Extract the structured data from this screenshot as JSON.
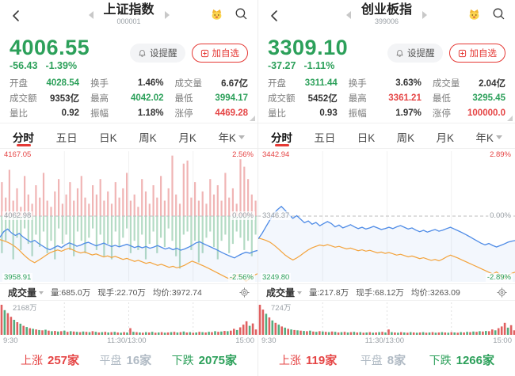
{
  "colors": {
    "up_red": "#e54545",
    "down_green": "#2ca05a",
    "flat_gray": "#b0bac4",
    "price_line_blue": "#4e8be6",
    "avg_line_orange": "#f3a33c",
    "accent_red": "#e53935",
    "bar_red": "rgba(222,92,92,0.45)",
    "bar_green": "rgba(77,170,114,0.42)",
    "vol_red": "#e06060",
    "vol_green": "#54ad7e"
  },
  "icons": [
    "back-chevron",
    "prev-triangle",
    "next-triangle",
    "vip-crown-face",
    "search-magnifier",
    "bell",
    "add-box",
    "chevron-down",
    "settings-gear",
    "expand-corner"
  ],
  "panels": {
    "left": {
      "header": {
        "title": "上证指数",
        "code": "000001"
      },
      "price": {
        "value": "4006.55",
        "change": "-56.43",
        "change_pct": "-1.39%",
        "color": "green"
      },
      "actions": {
        "set_alert": "设提醒",
        "add_watch": "加自选"
      },
      "stats": [
        {
          "label": "开盘",
          "value": "4028.54",
          "color": "green"
        },
        {
          "label": "换手",
          "value": "1.46%",
          "color": "dark"
        },
        {
          "label": "成交量",
          "value": "6.67亿",
          "color": "dark"
        },
        {
          "label": "成交额",
          "value": "9353亿",
          "color": "dark"
        },
        {
          "label": "最高",
          "value": "4042.02",
          "color": "green"
        },
        {
          "label": "最低",
          "value": "3994.17",
          "color": "green"
        },
        {
          "label": "量比",
          "value": "0.92",
          "color": "dark"
        },
        {
          "label": "振幅",
          "value": "1.18%",
          "color": "dark"
        },
        {
          "label": "涨停",
          "value": "4469.28",
          "color": "red"
        }
      ],
      "tabs": [
        {
          "label": "分时"
        },
        {
          "label": "五日"
        },
        {
          "label": "日K"
        },
        {
          "label": "周K"
        },
        {
          "label": "月K"
        },
        {
          "label": "年K"
        }
      ],
      "chart": {
        "high_label": "4167.05",
        "high_pct": "2.56%",
        "prev_close_label": "4062.98",
        "zero_pct": "0.00%",
        "low_label": "3958.91",
        "low_pct": "-2.56%",
        "range_pct": 2.56,
        "price_pct": [
          -0.85,
          -0.62,
          -0.52,
          -0.68,
          -0.78,
          -0.7,
          -0.84,
          -0.95,
          -1.05,
          -0.98,
          -1.1,
          -1.2,
          -1.3,
          -1.36,
          -1.28,
          -1.2,
          -1.27,
          -1.16,
          -1.08,
          -1.14,
          -1.22,
          -1.17,
          -1.1,
          -1.06,
          -1.13,
          -1.2,
          -1.15,
          -1.09,
          -1.16,
          -1.23,
          -1.18,
          -1.24,
          -1.19,
          -1.14,
          -1.2,
          -1.27,
          -1.22,
          -1.28,
          -1.23,
          -1.3,
          -1.25,
          -1.19,
          -1.26,
          -1.33,
          -1.28,
          -1.36,
          -1.3,
          -1.38,
          -1.33,
          -1.26,
          -1.18,
          -1.08,
          -1.04,
          -1.12,
          -1.19,
          -1.26,
          -1.33,
          -1.41,
          -1.49,
          -1.56,
          -1.63,
          -1.69,
          -1.6,
          -1.52,
          -1.46,
          -1.5,
          -1.43,
          -1.39
        ],
        "avg_pct": [
          -0.95,
          -1.0,
          -1.06,
          -1.14,
          -1.24,
          -1.38,
          -1.54,
          -1.68,
          -1.8,
          -1.88,
          -1.79,
          -1.69,
          -1.58,
          -1.48,
          -1.42,
          -1.37,
          -1.42,
          -1.35,
          -1.3,
          -1.37,
          -1.44,
          -1.49,
          -1.45,
          -1.51,
          -1.57,
          -1.53,
          -1.59,
          -1.65,
          -1.61,
          -1.67,
          -1.63,
          -1.69,
          -1.75,
          -1.71,
          -1.77,
          -1.83,
          -1.79,
          -1.85,
          -1.91,
          -1.87,
          -1.93,
          -1.99,
          -1.95,
          -2.01,
          -2.07,
          -2.03,
          -2.09,
          -2.05,
          -1.99,
          -1.9,
          -1.82,
          -1.88,
          -1.95,
          -2.02,
          -2.09,
          -2.17,
          -2.25,
          -2.33,
          -2.41,
          -2.49,
          -2.55,
          -2.44,
          -2.36,
          -2.47,
          -2.64,
          -2.52,
          -2.4,
          -2.33
        ],
        "bars_up": [
          0.55,
          0.3,
          0.75,
          0.25,
          0.45,
          0.15,
          0.65,
          0.35,
          0.2,
          0.5,
          0.3,
          0.7,
          0.25,
          0.15,
          0.4,
          0.6,
          0.2,
          0.35,
          0.55,
          0.25,
          0.45,
          0.65,
          0.3,
          0.2,
          0.5,
          0.35,
          0.6,
          0.25,
          0.4,
          0.2,
          0.55,
          0.3,
          0.45,
          0.7,
          0.25,
          0.35,
          0.15,
          0.6,
          0.4,
          0.2,
          0.5,
          0.3,
          0.65,
          0.25,
          0.45,
          0.98,
          0.35,
          0.2,
          0.85,
          0.9,
          0.3,
          0.55,
          0.25,
          0.4,
          0.2,
          0.6,
          0.35,
          0.5,
          0.25,
          0.7,
          0.3,
          0.45,
          0.2,
          0.92,
          0.8,
          0.6,
          0.35,
          0.25
        ],
        "bars_down": [
          0.6,
          0.4,
          0.25,
          0.7,
          0.35,
          0.55,
          0.2,
          0.45,
          0.65,
          0.3,
          0.5,
          0.25,
          0.6,
          0.4,
          0.7,
          0.2,
          0.45,
          0.3,
          0.55,
          0.65,
          0.25,
          0.4,
          0.6,
          0.35,
          0.2,
          0.55,
          0.3,
          0.65,
          0.45,
          0.7,
          0.25,
          0.5,
          0.35,
          0.2,
          0.6,
          0.4,
          0.55,
          0.3,
          0.7,
          0.45,
          0.25,
          0.6,
          0.35,
          0.5,
          0.2,
          0.4,
          0.65,
          0.85,
          0.3,
          0.25,
          0.55,
          0.4,
          0.75,
          0.6,
          0.35,
          0.25,
          0.5,
          0.7,
          0.4,
          0.3,
          0.6,
          0.45,
          0.25,
          0.35,
          0.55,
          0.4,
          0.65,
          0.3
        ]
      },
      "volume_header": {
        "title": "成交量",
        "vol": "量:685.0万",
        "current": "现手:22.70万",
        "avg": "均价:3972.74"
      },
      "volume_axis_label": "2168万",
      "volume_bars": [
        1.0,
        -0.82,
        0.72,
        0.6,
        -0.5,
        0.42,
        -0.37,
        0.3,
        -0.26,
        0.22,
        -0.2,
        0.18,
        -0.16,
        0.15,
        -0.17,
        0.14,
        -0.12,
        0.13,
        -0.11,
        0.12,
        -0.14,
        0.1,
        -0.12,
        0.11,
        -0.1,
        0.09,
        -0.11,
        0.1,
        -0.09,
        0.12,
        -0.1,
        0.08,
        -0.09,
        0.1,
        -0.08,
        0.09,
        -0.1,
        0.08,
        -0.07,
        0.09,
        -0.08,
        0.22,
        -0.1,
        0.09,
        -0.08,
        0.07,
        -0.09,
        0.08,
        -0.1,
        0.07,
        -0.08,
        0.09,
        -0.07,
        0.08,
        -0.09,
        0.1,
        -0.08,
        0.09,
        -0.11,
        0.08,
        -0.09,
        0.07,
        -0.08,
        0.1,
        -0.09,
        0.08,
        -0.1,
        0.09,
        -0.12,
        0.1,
        -0.11,
        0.13,
        -0.12,
        0.14,
        0.2,
        -0.16,
        0.25,
        0.34,
        0.45,
        -0.3,
        0.38,
        0.18
      ],
      "time_axis": [
        "9:30",
        "11:30/13:00",
        "15:00"
      ],
      "breadth": {
        "up_label": "上涨",
        "up_count": "257家",
        "flat_label": "平盘",
        "flat_count": "16家",
        "down_label": "下跌",
        "down_count": "2075家"
      }
    },
    "right": {
      "header": {
        "title": "创业板指",
        "code": "399006"
      },
      "price": {
        "value": "3309.10",
        "change": "-37.27",
        "change_pct": "-1.11%",
        "color": "green"
      },
      "actions": {
        "set_alert": "设提醒",
        "add_watch": "加自选"
      },
      "stats": [
        {
          "label": "开盘",
          "value": "3311.44",
          "color": "green"
        },
        {
          "label": "换手",
          "value": "3.63%",
          "color": "dark"
        },
        {
          "label": "成交量",
          "value": "2.04亿",
          "color": "dark"
        },
        {
          "label": "成交额",
          "value": "5452亿",
          "color": "dark"
        },
        {
          "label": "最高",
          "value": "3361.21",
          "color": "red"
        },
        {
          "label": "最低",
          "value": "3295.45",
          "color": "green"
        },
        {
          "label": "量比",
          "value": "0.93",
          "color": "dark"
        },
        {
          "label": "振幅",
          "value": "1.97%",
          "color": "dark"
        },
        {
          "label": "涨停",
          "value": "100000.0",
          "color": "red"
        }
      ],
      "tabs": [
        {
          "label": "分时"
        },
        {
          "label": "五日"
        },
        {
          "label": "日K"
        },
        {
          "label": "周K"
        },
        {
          "label": "月K"
        },
        {
          "label": "年K"
        }
      ],
      "chart": {
        "high_label": "3442.94",
        "high_pct": "2.89%",
        "prev_close_label": "3346.37",
        "zero_pct": "0.00%",
        "low_label": "3249.80",
        "low_pct": "-2.89%",
        "range_pct": 2.89,
        "price_pct": [
          -1.04,
          -0.78,
          -0.48,
          -0.18,
          0.1,
          0.3,
          0.44,
          0.26,
          0.06,
          -0.1,
          0.02,
          -0.14,
          -0.3,
          -0.22,
          -0.37,
          -0.29,
          -0.44,
          -0.34,
          -0.25,
          -0.34,
          -0.49,
          -0.41,
          -0.54,
          -0.47,
          -0.39,
          -0.49,
          -0.57,
          -0.51,
          -0.59,
          -0.54,
          -0.47,
          -0.54,
          -0.61,
          -0.57,
          -0.51,
          -0.57,
          -0.49,
          -0.43,
          -0.51,
          -0.59,
          -0.54,
          -0.64,
          -0.71,
          -0.65,
          -0.73,
          -0.67,
          -0.61,
          -0.69,
          -0.64,
          -0.57,
          -0.51,
          -0.59,
          -0.67,
          -0.75,
          -0.84,
          -0.94,
          -1.04,
          -1.14,
          -1.24,
          -1.31,
          -1.25,
          -1.34,
          -1.41,
          -1.34,
          -1.27,
          -1.19,
          -1.14,
          -1.11
        ],
        "avg_pct": [
          -1.0,
          -1.05,
          -1.11,
          -1.19,
          -1.31,
          -1.46,
          -1.62,
          -1.78,
          -1.9,
          -2.0,
          -1.91,
          -1.79,
          -1.66,
          -1.54,
          -1.45,
          -1.38,
          -1.32,
          -1.36,
          -1.3,
          -1.36,
          -1.42,
          -1.38,
          -1.44,
          -1.5,
          -1.46,
          -1.52,
          -1.58,
          -1.54,
          -1.6,
          -1.56,
          -1.62,
          -1.68,
          -1.64,
          -1.7,
          -1.66,
          -1.72,
          -1.78,
          -1.74,
          -1.8,
          -1.86,
          -1.82,
          -1.88,
          -1.94,
          -1.9,
          -1.96,
          -2.02,
          -1.98,
          -2.04,
          -1.96,
          -1.86,
          -1.78,
          -1.85,
          -1.92,
          -2.0,
          -2.08,
          -2.16,
          -2.24,
          -2.32,
          -2.4,
          -2.48,
          -2.56,
          -2.64,
          -2.55,
          -2.68,
          -2.86,
          -2.72,
          -2.61,
          -2.55
        ],
        "bars_up": [],
        "bars_down": []
      },
      "volume_header": {
        "title": "成交量",
        "vol": "量:217.8万",
        "current": "现手:68.12万",
        "avg": "均价:3263.09"
      },
      "volume_axis_label": "724万",
      "volume_bars": [
        1.0,
        0.84,
        -0.7,
        0.58,
        -0.48,
        0.4,
        -0.34,
        0.28,
        -0.24,
        0.2,
        -0.18,
        0.16,
        -0.15,
        0.14,
        -0.13,
        0.12,
        -0.14,
        0.11,
        -0.1,
        0.12,
        -0.11,
        0.1,
        -0.09,
        0.11,
        -0.1,
        0.08,
        -0.09,
        0.1,
        -0.08,
        0.09,
        -0.1,
        0.08,
        -0.09,
        0.07,
        -0.08,
        0.09,
        -0.07,
        0.08,
        -0.09,
        0.1,
        -0.08,
        0.18,
        -0.09,
        0.08,
        -0.07,
        0.09,
        -0.08,
        0.07,
        -0.09,
        0.08,
        -0.07,
        0.08,
        -0.09,
        0.07,
        -0.08,
        0.09,
        -0.07,
        0.08,
        -0.09,
        0.08,
        -0.07,
        0.09,
        -0.08,
        0.07,
        -0.09,
        0.08,
        -0.1,
        0.09,
        -0.11,
        0.1,
        -0.12,
        0.11,
        -0.13,
        0.12,
        0.18,
        -0.15,
        0.22,
        0.28,
        0.4,
        -0.24,
        0.32,
        0.15
      ],
      "time_axis": [
        "9:30",
        "11:30/13:00",
        "15:00"
      ],
      "breadth": {
        "up_label": "上涨",
        "up_count": "119家",
        "flat_label": "平盘",
        "flat_count": "8家",
        "down_label": "下跌",
        "down_count": "1266家"
      }
    }
  }
}
